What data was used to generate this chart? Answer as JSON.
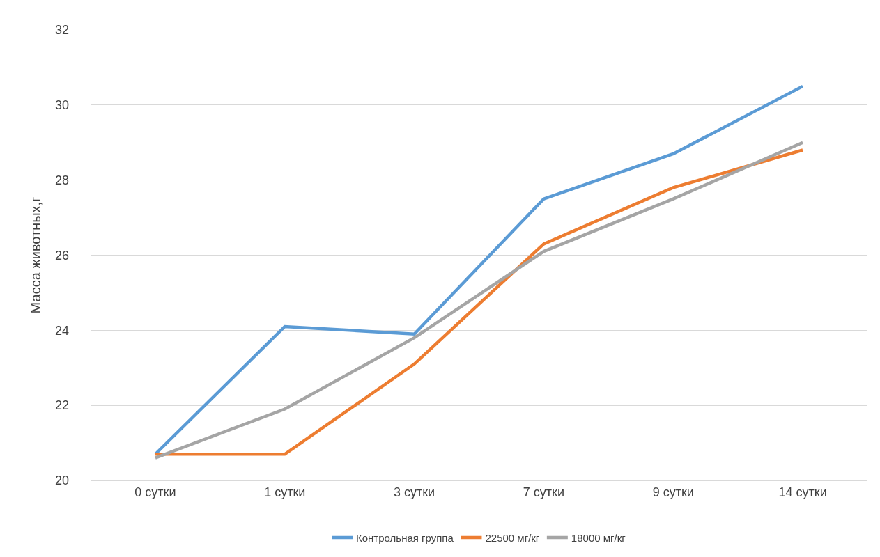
{
  "chart_data": {
    "type": "line",
    "ylabel": "Масса животных,г",
    "categories": [
      "0 сутки",
      "1 сутки",
      "3 сутки",
      "7 сутки",
      "9 сутки",
      "14 сутки"
    ],
    "series": [
      {
        "name": "Контрольная группа",
        "color": "#5b9bd5",
        "values": [
          20.7,
          24.1,
          23.9,
          27.5,
          28.7,
          30.5
        ]
      },
      {
        "name": "22500 мг/кг",
        "color": "#ed7d31",
        "values": [
          20.7,
          20.7,
          23.1,
          26.3,
          27.8,
          28.8
        ]
      },
      {
        "name": "18000 мг/кг",
        "color": "#a5a5a5",
        "values": [
          20.6,
          21.9,
          23.8,
          26.1,
          27.5,
          29.0
        ]
      }
    ],
    "ylim": [
      20,
      32
    ],
    "yticks": [
      20,
      22,
      24,
      26,
      28,
      30,
      32
    ],
    "grid": "y",
    "legend": "bottom",
    "marker": "none",
    "line_style": "solid"
  }
}
